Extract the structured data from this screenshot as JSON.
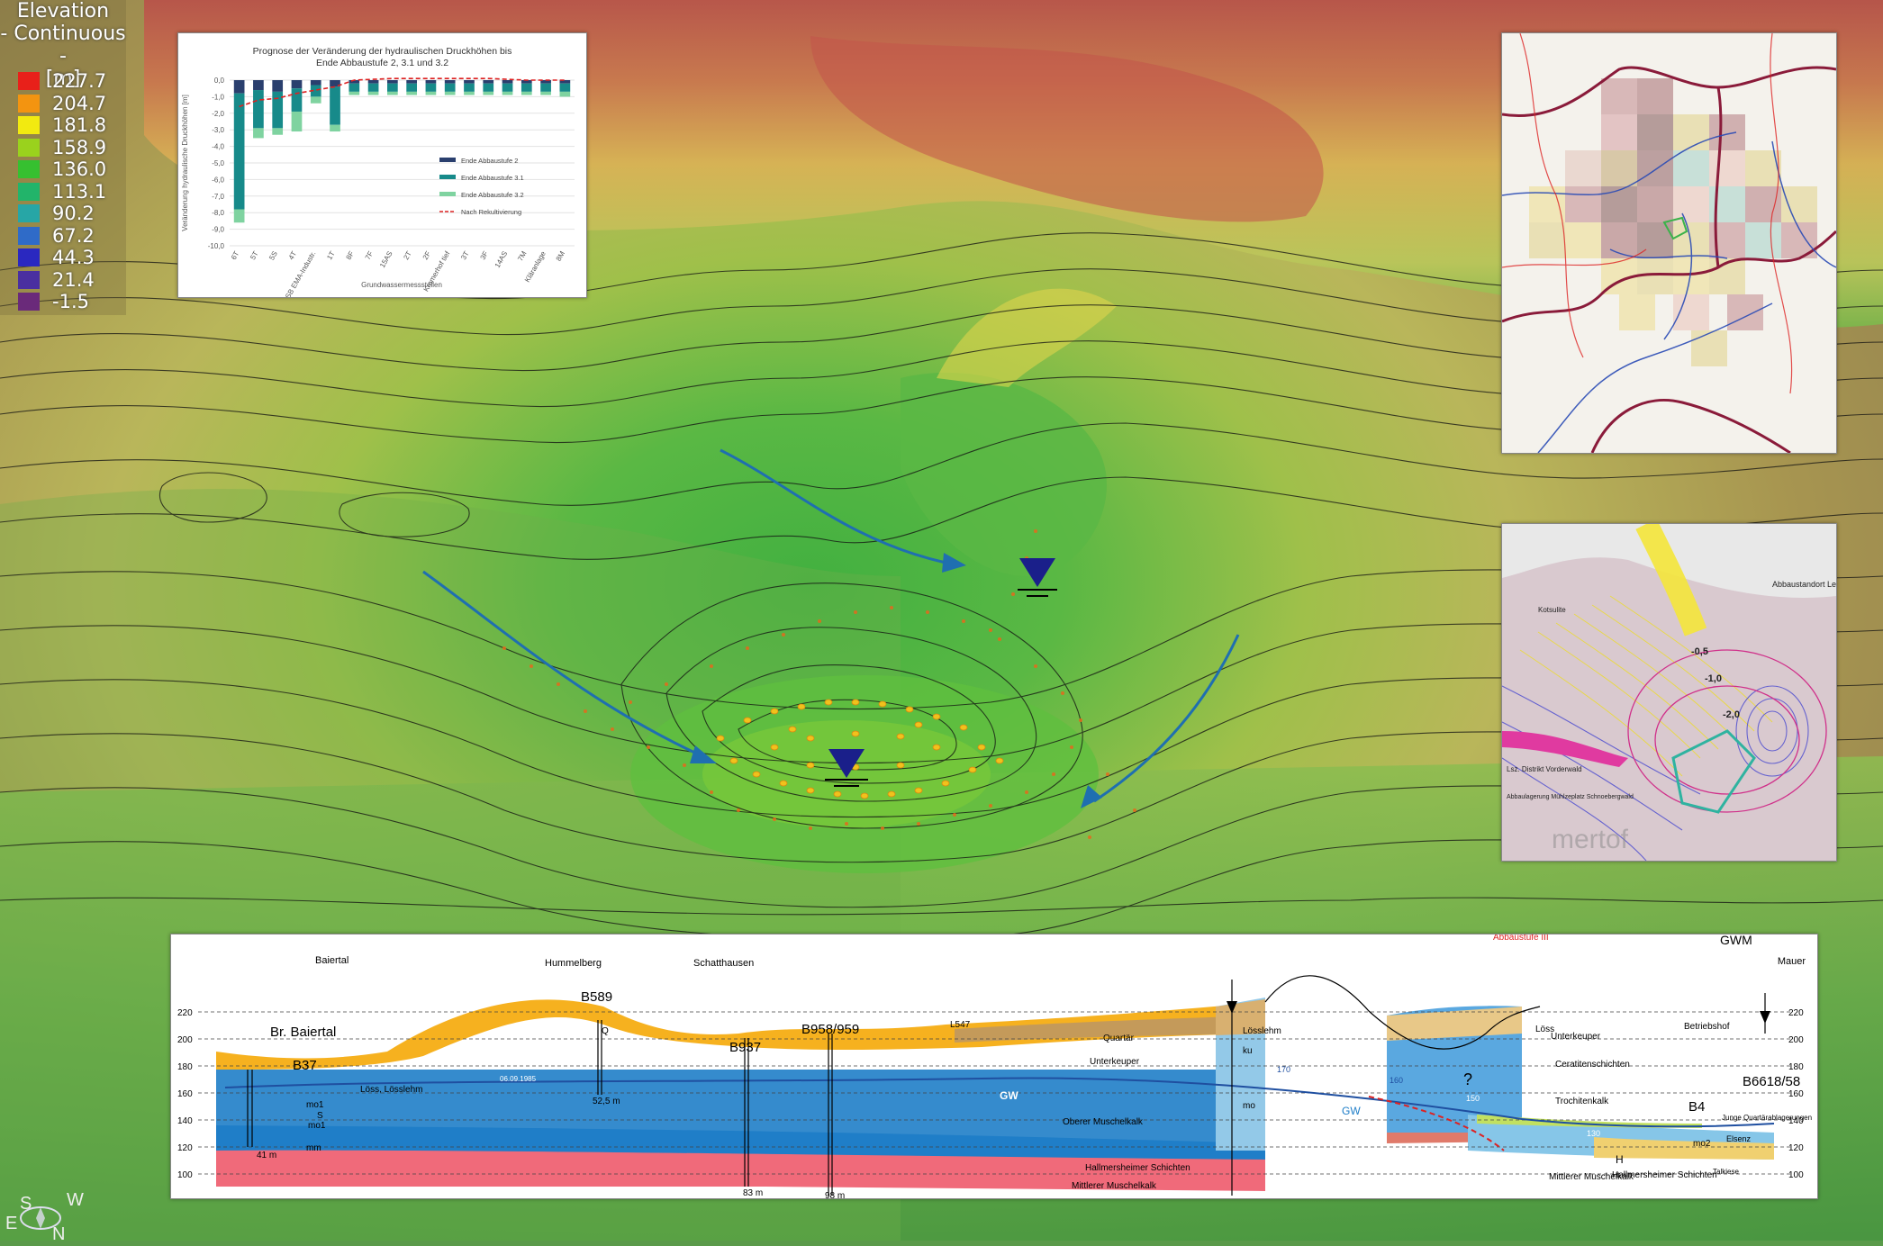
{
  "legend": {
    "title_line1": "Elevation",
    "title_line2": "- Continuous -",
    "unit": "[m]",
    "items": [
      {
        "value": "227.7",
        "color": "#e8201a"
      },
      {
        "value": "204.7",
        "color": "#f39410"
      },
      {
        "value": "181.8",
        "color": "#f2ea10"
      },
      {
        "value": "158.9",
        "color": "#9ad21d"
      },
      {
        "value": "136.0",
        "color": "#36c030"
      },
      {
        "value": "113.1",
        "color": "#22b46a"
      },
      {
        "value": "90.2",
        "color": "#27a6a6"
      },
      {
        "value": "67.2",
        "color": "#2f6bc8"
      },
      {
        "value": "44.3",
        "color": "#2a28c0"
      },
      {
        "value": "21.4",
        "color": "#4a2fa0"
      },
      {
        "value": "-1.5",
        "color": "#6a2a7a"
      }
    ]
  },
  "chart_data": {
    "type": "bar",
    "title": "Prognose der Veränderung der hydraulischen Druckhöhen bis Ende Abbaustufe 2, 3.1 und 3.2",
    "xlabel": "Grundwassermessstellen",
    "ylabel": "Veränderung hydraulische Druckhöhen [m]",
    "ylim": [
      -10.0,
      0.0
    ],
    "yticks": [
      "0,0",
      "-1,0",
      "-2,0",
      "-3,0",
      "-4,0",
      "-5,0",
      "-6,0",
      "-7,0",
      "-8,0",
      "-9,0",
      "-10,0"
    ],
    "categories": [
      "6T",
      "5T",
      "5S",
      "4T",
      "SB EMA-Industr.",
      "1T",
      "8F",
      "7F",
      "15AS",
      "2T",
      "2F",
      "Kramerhof tief",
      "3T",
      "3F",
      "14AS",
      "7M",
      "Kläranlage",
      "8M"
    ],
    "series": [
      {
        "name": "Ende Abbaustufe 2",
        "color": "#2a3f6e",
        "values": [
          -0.8,
          -0.6,
          -0.7,
          -0.5,
          -0.3,
          -0.4,
          -0.2,
          -0.2,
          -0.2,
          -0.2,
          -0.2,
          -0.2,
          -0.2,
          -0.2,
          -0.2,
          -0.2,
          -0.2,
          -0.2
        ]
      },
      {
        "name": "Ende Abbaustufe 3.1",
        "color": "#178a8a",
        "values": [
          -7.0,
          -2.3,
          -2.2,
          -1.4,
          -0.7,
          -2.3,
          -0.5,
          -0.5,
          -0.5,
          -0.5,
          -0.5,
          -0.5,
          -0.5,
          -0.5,
          -0.5,
          -0.5,
          -0.5,
          -0.5
        ]
      },
      {
        "name": "Ende Abbaustufe 3.2",
        "color": "#7fd3a0",
        "values": [
          -0.8,
          -0.6,
          -0.4,
          -1.2,
          -0.4,
          -0.4,
          -0.2,
          -0.2,
          -0.2,
          -0.2,
          -0.2,
          -0.2,
          -0.2,
          -0.2,
          -0.2,
          -0.2,
          -0.2,
          -0.3
        ]
      },
      {
        "name": "Nach Rekultivierung",
        "color": "#d22",
        "values": [
          -1.6,
          -1.2,
          -1.1,
          -0.8,
          -0.6,
          -0.4,
          0.0,
          0.05,
          0.1,
          0.1,
          0.1,
          0.1,
          0.1,
          0.1,
          0.05,
          0.0,
          0.0,
          0.0
        ]
      }
    ]
  },
  "cross_section": {
    "places": [
      "Baiertal",
      "Hummelberg",
      "Schatthausen",
      "Mauer"
    ],
    "wells": [
      "Br. Baiertal",
      "B37",
      "B589",
      "B937",
      "B958/959",
      "B4",
      "B6618/58"
    ],
    "road": "L547",
    "gwm": "GWM",
    "abbaustufe": "Abbaustufe III",
    "betrieb": "Betriebshof",
    "gw": "GW",
    "date": "06.09.1985",
    "depths": [
      "41 m",
      "52,5 m",
      "83 m",
      "98 m"
    ],
    "layers": [
      "Quartär",
      "Unterkeuper",
      "Oberer Muschelkalk",
      "Hallmersheimer Schichten",
      "Mittlerer Muschelkalk",
      "Löss, Lösslehm",
      "Lösslehm",
      "Löss",
      "Unterkeuper",
      "Ceratitenschichten",
      "Trochitenkalk",
      "Hallmersheimer Schichten",
      "Mittlerer Muschelkalk",
      "Elsenz",
      "Talkiese",
      "Junge Quartärablagerungen"
    ],
    "codes": [
      "Q",
      "mo1",
      "mm",
      "ku",
      "mo",
      "mo1",
      "mo2",
      "H",
      "S"
    ],
    "y_ticks": [
      "220",
      "200",
      "180",
      "160",
      "140",
      "120",
      "100"
    ],
    "levels": [
      "170",
      "160",
      "150",
      "140",
      "130"
    ],
    "question": "?"
  },
  "map_panel_2": {
    "labels": [
      "Abbaustandort Leimbach",
      "-0,5",
      "-1,0",
      "-2,0",
      "Kotsulite",
      "Lsz. Distrikt Vorderwald",
      "Abbaulagerung Mühlzeplatz Schnoebergwald",
      "mertof"
    ]
  },
  "compass": {
    "letters": [
      "S",
      "W",
      "E",
      "N"
    ]
  }
}
